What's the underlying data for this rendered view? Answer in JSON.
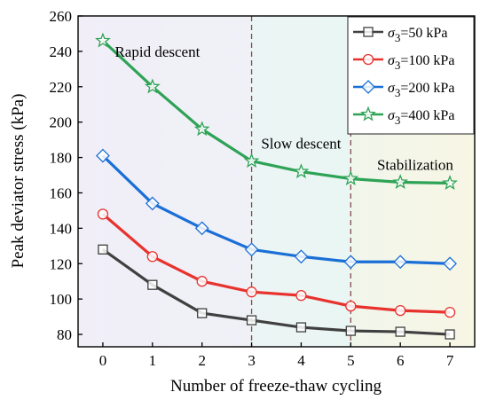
{
  "chart_data": {
    "type": "line",
    "xlabel": "Number of freeze-thaw cycling",
    "ylabel": "Peak deviator stress (kPa)",
    "x": [
      0,
      1,
      2,
      3,
      4,
      5,
      6,
      7
    ],
    "xlim": [
      -0.5,
      7.5
    ],
    "ylim": [
      73,
      260
    ],
    "xticks": [
      "0",
      "1",
      "2",
      "3",
      "4",
      "5",
      "6",
      "7"
    ],
    "yticks": [
      "80",
      "100",
      "120",
      "140",
      "160",
      "180",
      "200",
      "220",
      "240",
      "260"
    ],
    "series": [
      {
        "name_prefix": "σ",
        "name_sub": "3",
        "name_suffix": "=50 kPa",
        "marker": "square",
        "color": "#404040",
        "values": [
          128,
          108,
          92,
          88,
          84,
          82,
          81.5,
          80
        ]
      },
      {
        "name_prefix": "σ",
        "name_sub": "3",
        "name_suffix": "=100 kPa",
        "marker": "circle",
        "color": "#e8322e",
        "values": [
          148,
          124,
          110,
          104,
          102,
          96,
          93.5,
          92.5
        ]
      },
      {
        "name_prefix": "σ",
        "name_sub": "3",
        "name_suffix": "=200 kPa",
        "marker": "diamond",
        "color": "#1a6fd6",
        "values": [
          181,
          154,
          140,
          128,
          124,
          121,
          121,
          120
        ]
      },
      {
        "name_prefix": "σ",
        "name_sub": "3",
        "name_suffix": "=400 kPa",
        "marker": "star",
        "color": "#2ea356",
        "values": [
          246,
          220,
          196,
          178,
          172,
          168,
          166,
          165.5
        ]
      }
    ],
    "dividers_x": [
      3,
      5
    ],
    "annotations": [
      {
        "text": "Rapid descent",
        "x": 1.1,
        "y": 237
      },
      {
        "text": "Slow descent",
        "x": 4.0,
        "y": 185
      },
      {
        "text": "Stabilization",
        "x": 6.3,
        "y": 173
      }
    ],
    "regions": [
      {
        "from": -0.5,
        "to": 3,
        "color": "#f1eef7"
      },
      {
        "from": 3,
        "to": 5,
        "color": "#e9f5f4"
      },
      {
        "from": 5,
        "to": 7.5,
        "color": "#f7f6e6"
      }
    ],
    "grid": false,
    "legend_position": "top-right"
  }
}
